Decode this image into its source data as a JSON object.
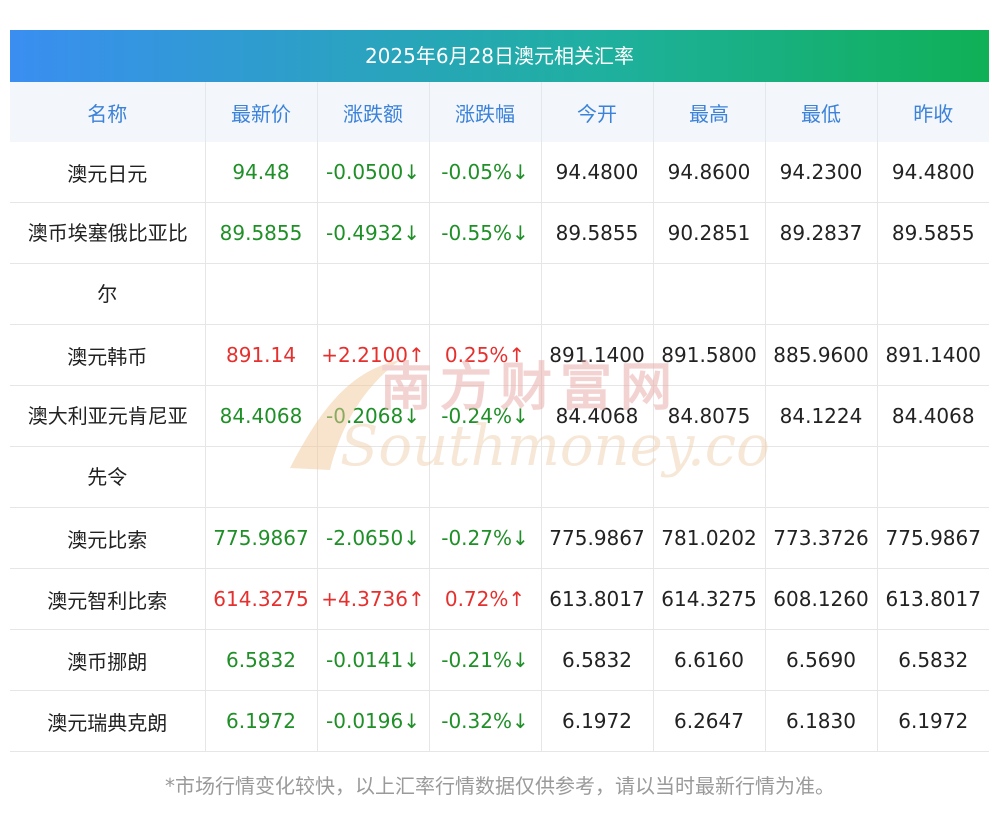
{
  "title": "2025年6月28日澳元相关汇率",
  "columns": [
    "名称",
    "最新价",
    "涨跌额",
    "涨跌幅",
    "今开",
    "最高",
    "最低",
    "昨收"
  ],
  "rows": [
    {
      "name": "澳元日元",
      "latest": "94.48",
      "change": "-0.0500↓",
      "pct": "-0.05%↓",
      "open": "94.4800",
      "high": "94.8600",
      "low": "94.2300",
      "prev": "94.4800",
      "dir": "down"
    },
    {
      "name": "澳币埃塞俄比亚比尔",
      "name_line1": "澳币埃塞俄比亚比",
      "name_line2": "尔",
      "latest": "89.5855",
      "change": "-0.4932↓",
      "pct": "-0.55%↓",
      "open": "89.5855",
      "high": "90.2851",
      "low": "89.2837",
      "prev": "89.5855",
      "dir": "down"
    },
    {
      "name": "澳元韩币",
      "latest": "891.14",
      "change": "+2.2100↑",
      "pct": "0.25%↑",
      "open": "891.1400",
      "high": "891.5800",
      "low": "885.9600",
      "prev": "891.1400",
      "dir": "up"
    },
    {
      "name": "澳大利亚元肯尼亚先令",
      "name_line1": "澳大利亚元肯尼亚",
      "name_line2": "先令",
      "latest": "84.4068",
      "change": "-0.2068↓",
      "pct": "-0.24%↓",
      "open": "84.4068",
      "high": "84.8075",
      "low": "84.1224",
      "prev": "84.4068",
      "dir": "down"
    },
    {
      "name": "澳元比索",
      "latest": "775.9867",
      "change": "-2.0650↓",
      "pct": "-0.27%↓",
      "open": "775.9867",
      "high": "781.0202",
      "low": "773.3726",
      "prev": "775.9867",
      "dir": "down"
    },
    {
      "name": "澳元智利比索",
      "latest": "614.3275",
      "change": "+4.3736↑",
      "pct": "0.72%↑",
      "open": "613.8017",
      "high": "614.3275",
      "low": "608.1260",
      "prev": "613.8017",
      "dir": "up"
    },
    {
      "name": "澳币挪朗",
      "latest": "6.5832",
      "change": "-0.0141↓",
      "pct": "-0.21%↓",
      "open": "6.5832",
      "high": "6.6160",
      "low": "6.5690",
      "prev": "6.5832",
      "dir": "down"
    },
    {
      "name": "澳元瑞典克朗",
      "latest": "6.1972",
      "change": "-0.0196↓",
      "pct": "-0.32%↓",
      "open": "6.1972",
      "high": "6.2647",
      "low": "6.1830",
      "prev": "6.1972",
      "dir": "down"
    }
  ],
  "footnote": "*市场行情变化较快，以上汇率行情数据仅供参考，请以当时最新行情为准。",
  "watermark": {
    "cn": "南方财富网",
    "en": "Southmoney.com"
  },
  "colors": {
    "up": "#e5302e",
    "down": "#1f8f27",
    "header_text": "#3b82d8"
  }
}
